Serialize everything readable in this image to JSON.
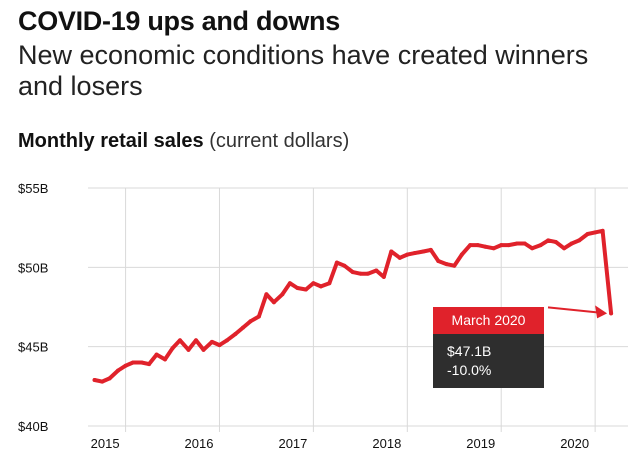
{
  "header": {
    "title": "COVID-19 ups and downs",
    "subtitle": "New economic conditions have created winners and losers"
  },
  "chart_data": {
    "type": "line",
    "title": "Monthly retail sales",
    "title_note": "(current dollars)",
    "xlabel": "",
    "ylabel": "",
    "xlim": [
      2014.6,
      2020.35
    ],
    "ylim": [
      40,
      55
    ],
    "yticks": [
      40,
      45,
      50,
      55
    ],
    "ytick_labels": [
      "$40B",
      "$45B",
      "$50B",
      "$55B"
    ],
    "xticks": [
      2015,
      2016,
      2017,
      2018,
      2019,
      2020
    ],
    "xtick_labels": [
      "2015",
      "2016",
      "2017",
      "2018",
      "2019",
      "2020"
    ],
    "grid": "horizontal",
    "colors": {
      "line": "#e0222b",
      "annotation_head": "#e0222b",
      "annotation_body": "#2e2e2e",
      "grid": "#d9d9d9"
    },
    "series": [
      {
        "x": [
          2014.67,
          2014.75,
          2014.83,
          2014.92,
          2015.0,
          2015.08,
          2015.17,
          2015.25,
          2015.33,
          2015.42,
          2015.5,
          2015.58,
          2015.67,
          2015.75,
          2015.83,
          2015.92,
          2016.0,
          2016.08,
          2016.17,
          2016.25,
          2016.33,
          2016.42,
          2016.5,
          2016.58,
          2016.67,
          2016.75,
          2016.83,
          2016.92,
          2017.0,
          2017.08,
          2017.17,
          2017.25,
          2017.33,
          2017.42,
          2017.5,
          2017.58,
          2017.67,
          2017.75,
          2017.83,
          2017.92,
          2018.0,
          2018.08,
          2018.17,
          2018.25,
          2018.33,
          2018.42,
          2018.5,
          2018.58,
          2018.67,
          2018.75,
          2018.83,
          2018.92,
          2019.0,
          2019.08,
          2019.17,
          2019.25,
          2019.33,
          2019.42,
          2019.5,
          2019.58,
          2019.67,
          2019.75,
          2019.83,
          2019.92,
          2020.0,
          2020.08,
          2020.17
        ],
        "values": [
          42.9,
          42.8,
          43.0,
          43.5,
          43.8,
          44.0,
          44.0,
          43.9,
          44.5,
          44.2,
          44.9,
          45.4,
          44.8,
          45.4,
          44.8,
          45.3,
          45.1,
          45.4,
          45.8,
          46.2,
          46.6,
          46.9,
          48.3,
          47.8,
          48.3,
          49.0,
          48.7,
          48.6,
          49.0,
          48.8,
          49.0,
          50.3,
          50.1,
          49.7,
          49.6,
          49.6,
          49.8,
          49.4,
          51.0,
          50.6,
          50.8,
          50.9,
          51.0,
          51.1,
          50.4,
          50.2,
          50.1,
          50.8,
          51.4,
          51.4,
          51.3,
          51.2,
          51.4,
          51.4,
          51.5,
          51.5,
          51.2,
          51.4,
          51.7,
          51.6,
          51.2,
          51.5,
          51.7,
          52.1,
          52.2,
          52.3,
          47.1
        ]
      }
    ],
    "annotation": {
      "label": "March 2020",
      "value": "$47.1B",
      "change": "-10.0%"
    }
  }
}
